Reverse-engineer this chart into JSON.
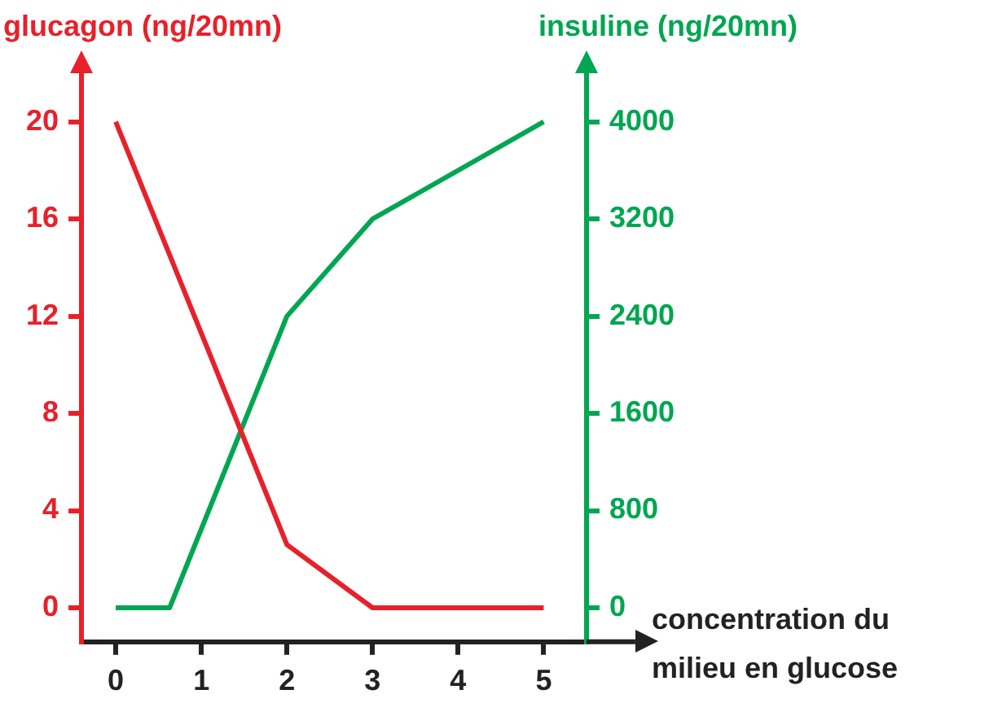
{
  "chart_data": {
    "type": "line",
    "ylabel": "glucagon (ng/20mn)",
    "y2label": "insuline (ng/20mn)",
    "xlabel": "concentration du milieu en glucose",
    "xlim": [
      -0.4,
      5.5
    ],
    "xticks": [
      0,
      1,
      2,
      3,
      4,
      5
    ],
    "ylim": [
      -1.4,
      22
    ],
    "yticks": [
      0,
      4,
      8,
      12,
      16,
      20
    ],
    "y2lim": [
      -280,
      4400
    ],
    "y2ticks": [
      0,
      800,
      1600,
      2400,
      3200,
      4000
    ],
    "grid": false,
    "legend": false,
    "marker": "none",
    "line_style": "solid",
    "series": [
      {
        "color": "#e8202a",
        "x": [
          0,
          2,
          3,
          5
        ],
        "values": [
          20,
          2.6,
          0,
          0
        ]
      },
      {
        "color": "#00a651",
        "axis": "y2",
        "x": [
          0,
          0.63,
          2,
          3,
          5
        ],
        "values": [
          0,
          0,
          2400,
          3200,
          4000
        ]
      }
    ]
  }
}
